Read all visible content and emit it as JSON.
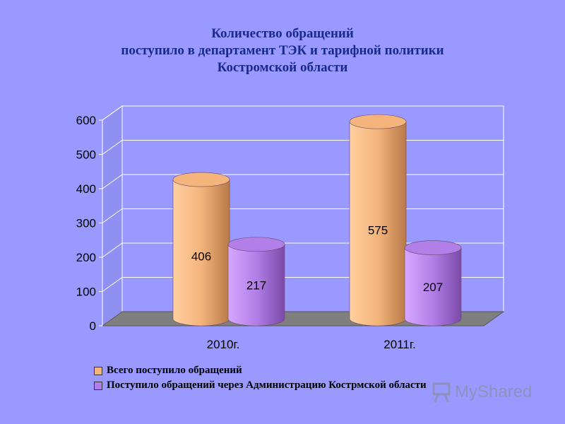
{
  "chart_data": {
    "type": "bar",
    "title": [
      "Количество обращений",
      "поступило в департамент ТЭК и тарифной политики",
      "Костромской области"
    ],
    "categories": [
      "2010г.",
      "2011г."
    ],
    "series": [
      {
        "name": "Всего поступило обращений",
        "values": [
          406,
          575
        ],
        "color": "#f4b47c"
      },
      {
        "name": "Поступило обращений через Администрацию Кострмской области",
        "values": [
          217,
          207
        ],
        "color": "#b27ee8"
      }
    ],
    "yticks": [
      "0",
      "100",
      "200",
      "300",
      "400",
      "500",
      "600"
    ],
    "ylim": [
      0,
      600
    ],
    "grid": true,
    "legend_position": "bottom"
  },
  "watermark": {
    "text": "MyShared",
    "icon": "presentation-board-icon"
  }
}
